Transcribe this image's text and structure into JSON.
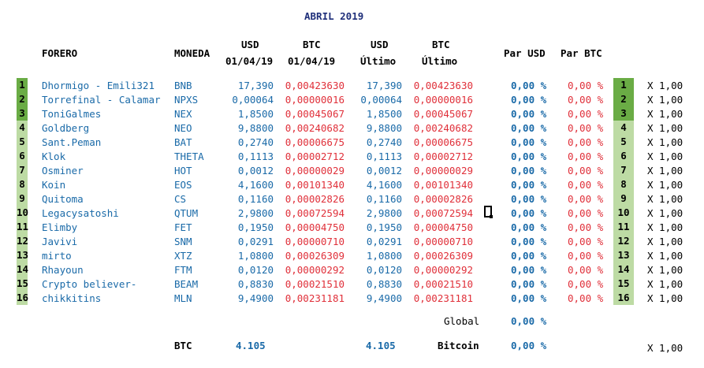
{
  "title": "ABRIL 2019",
  "headers": {
    "forero": "FORERO",
    "moneda": "MONEDA",
    "usd1_top": "USD",
    "usd1_bottom": "01/04/19",
    "btc1_top": "BTC",
    "btc1_bottom": "01/04/19",
    "usd2_top": "USD",
    "usd2_bottom": "Último",
    "btc2_top": "BTC",
    "btc2_bottom": "Último",
    "par_usd": "Par USD",
    "par_btc": "Par BTC"
  },
  "rows": [
    {
      "n": "1",
      "forero": "Dhormigo - Emili321",
      "moneda": "BNB",
      "usd1": "17,390",
      "btc1": "0,00423630",
      "usd2": "17,390",
      "btc2": "0,00423630",
      "par_usd": "0,00 %",
      "par_btc": "0,00 %",
      "mult": "X 1,00",
      "style": "dark"
    },
    {
      "n": "2",
      "forero": "Torrefinal - Calamar",
      "moneda": "NPXS",
      "usd1": "0,00064",
      "btc1": "0,00000016",
      "usd2": "0,00064",
      "btc2": "0,00000016",
      "par_usd": "0,00 %",
      "par_btc": "0,00 %",
      "mult": "X 1,00",
      "style": "dark"
    },
    {
      "n": "3",
      "forero": "ToniGalmes",
      "moneda": "NEX",
      "usd1": "1,8500",
      "btc1": "0,00045067",
      "usd2": "1,8500",
      "btc2": "0,00045067",
      "par_usd": "0,00 %",
      "par_btc": "0,00 %",
      "mult": "X 1,00",
      "style": "dark"
    },
    {
      "n": "4",
      "forero": "Goldberg",
      "moneda": "NEO",
      "usd1": "9,8800",
      "btc1": "0,00240682",
      "usd2": "9,8800",
      "btc2": "0,00240682",
      "par_usd": "0,00 %",
      "par_btc": "0,00 %",
      "mult": "X 1,00",
      "style": "light"
    },
    {
      "n": "5",
      "forero": "Sant.Peman",
      "moneda": "BAT",
      "usd1": "0,2740",
      "btc1": "0,00006675",
      "usd2": "0,2740",
      "btc2": "0,00006675",
      "par_usd": "0,00 %",
      "par_btc": "0,00 %",
      "mult": "X 1,00",
      "style": "light"
    },
    {
      "n": "6",
      "forero": "Klok",
      "moneda": "THETA",
      "usd1": "0,1113",
      "btc1": "0,00002712",
      "usd2": "0,1113",
      "btc2": "0,00002712",
      "par_usd": "0,00 %",
      "par_btc": "0,00 %",
      "mult": "X 1,00",
      "style": "light"
    },
    {
      "n": "7",
      "forero": "Osminer",
      "moneda": "HOT",
      "usd1": "0,0012",
      "btc1": "0,00000029",
      "usd2": "0,0012",
      "btc2": "0,00000029",
      "par_usd": "0,00 %",
      "par_btc": "0,00 %",
      "mult": "X 1,00",
      "style": "light"
    },
    {
      "n": "8",
      "forero": "Koin",
      "moneda": "EOS",
      "usd1": "4,1600",
      "btc1": "0,00101340",
      "usd2": "4,1600",
      "btc2": "0,00101340",
      "par_usd": "0,00 %",
      "par_btc": "0,00 %",
      "mult": "X 1,00",
      "style": "light"
    },
    {
      "n": "9",
      "forero": "Quitoma",
      "moneda": "CS",
      "usd1": "0,1160",
      "btc1": "0,00002826",
      "usd2": "0,1160",
      "btc2": "0,00002826",
      "par_usd": "0,00 %",
      "par_btc": "0,00 %",
      "mult": "X 1,00",
      "style": "light"
    },
    {
      "n": "10",
      "forero": "Legacysatoshi",
      "moneda": "QTUM",
      "usd1": "2,9800",
      "btc1": "0,00072594",
      "usd2": "2,9800",
      "btc2": "0,00072594",
      "par_usd": "0,00 %",
      "par_btc": "0,00 %",
      "mult": "X 1,00",
      "style": "light"
    },
    {
      "n": "11",
      "forero": "Elimby",
      "moneda": "FET",
      "usd1": "0,1950",
      "btc1": "0,00004750",
      "usd2": "0,1950",
      "btc2": "0,00004750",
      "par_usd": "0,00 %",
      "par_btc": "0,00 %",
      "mult": "X 1,00",
      "style": "light"
    },
    {
      "n": "12",
      "forero": "Javivi",
      "moneda": "SNM",
      "usd1": "0,0291",
      "btc1": "0,00000710",
      "usd2": "0,0291",
      "btc2": "0,00000710",
      "par_usd": "0,00 %",
      "par_btc": "0,00 %",
      "mult": "X 1,00",
      "style": "light"
    },
    {
      "n": "13",
      "forero": "mirto",
      "moneda": "XTZ",
      "usd1": "1,0800",
      "btc1": "0,00026309",
      "usd2": "1,0800",
      "btc2": "0,00026309",
      "par_usd": "0,00 %",
      "par_btc": "0,00 %",
      "mult": "X 1,00",
      "style": "light"
    },
    {
      "n": "14",
      "forero": "Rhayoun",
      "moneda": "FTM",
      "usd1": "0,0120",
      "btc1": "0,00000292",
      "usd2": "0,0120",
      "btc2": "0,00000292",
      "par_usd": "0,00 %",
      "par_btc": "0,00 %",
      "mult": "X 1,00",
      "style": "light"
    },
    {
      "n": "15",
      "forero": "Crypto believer-",
      "moneda": "BEAM",
      "usd1": "0,8830",
      "btc1": "0,00021510",
      "usd2": "0,8830",
      "btc2": "0,00021510",
      "par_usd": "0,00 %",
      "par_btc": "0,00 %",
      "mult": "X 1,00",
      "style": "light"
    },
    {
      "n": "16",
      "forero": "chikkitins",
      "moneda": "MLN",
      "usd1": "9,4900",
      "btc1": "0,00231181",
      "usd2": "9,4900",
      "btc2": "0,00231181",
      "par_usd": "0,00 %",
      "par_btc": "0,00 %",
      "mult": "X 1,00",
      "style": "light"
    }
  ],
  "footer": {
    "global_label": "Global",
    "global_value": "0,00 %",
    "btc_label": "BTC",
    "btc_usd1": "4.105",
    "btc_usd2": "4.105",
    "bitcoin_label": "Bitcoin",
    "bitcoin_value": "0,00 %",
    "bitcoin_mult": "X 1,00"
  },
  "colors": {
    "title": "#1f2f7a",
    "blue": "#1a6aa8",
    "red": "#e0303a",
    "rank_top3": "#6aac45",
    "rank_other": "#bddba4"
  }
}
